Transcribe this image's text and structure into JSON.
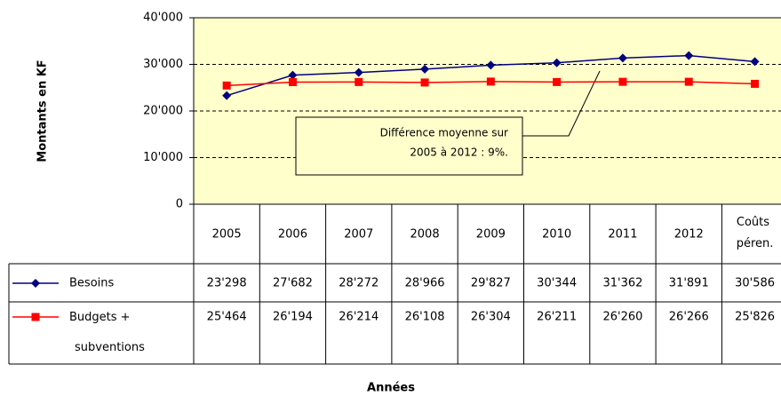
{
  "chart_data": {
    "type": "line",
    "y_label": "Montants en KF",
    "x_label": "Années",
    "annotation": [
      "Différence moyenne sur",
      "2005 à 2012 : 9%."
    ],
    "categories": [
      "2005",
      "2006",
      "2007",
      "2008",
      "2009",
      "2010",
      "2011",
      "2012",
      "Coûts péren."
    ],
    "series": [
      {
        "name": "Besoins",
        "color": "#000080",
        "marker": "diamond",
        "values": [
          23298,
          27682,
          28272,
          28966,
          29827,
          30344,
          31362,
          31891,
          30586
        ],
        "value_labels": [
          "23'298",
          "27'682",
          "28'272",
          "28'966",
          "29'827",
          "30'344",
          "31'362",
          "31'891",
          "30'586"
        ]
      },
      {
        "name": "Budgets + subventions",
        "color": "#ff0000",
        "marker": "square",
        "values": [
          25464,
          26194,
          26214,
          26108,
          26304,
          26211,
          26260,
          26266,
          25826
        ],
        "value_labels": [
          "25'464",
          "26'194",
          "26'214",
          "26'108",
          "26'304",
          "26'211",
          "26'260",
          "26'266",
          "25'826"
        ]
      }
    ],
    "ylim": [
      0,
      40000
    ],
    "yticks": [
      0,
      {
        "value": 10000,
        "label": "10'000"
      },
      {
        "value": 20000,
        "label": "20'000"
      },
      {
        "value": 30000,
        "label": "30'000"
      },
      {
        "value": 40000,
        "label": "40'000"
      }
    ],
    "grid": true,
    "plot_background": "#ffffcc"
  }
}
